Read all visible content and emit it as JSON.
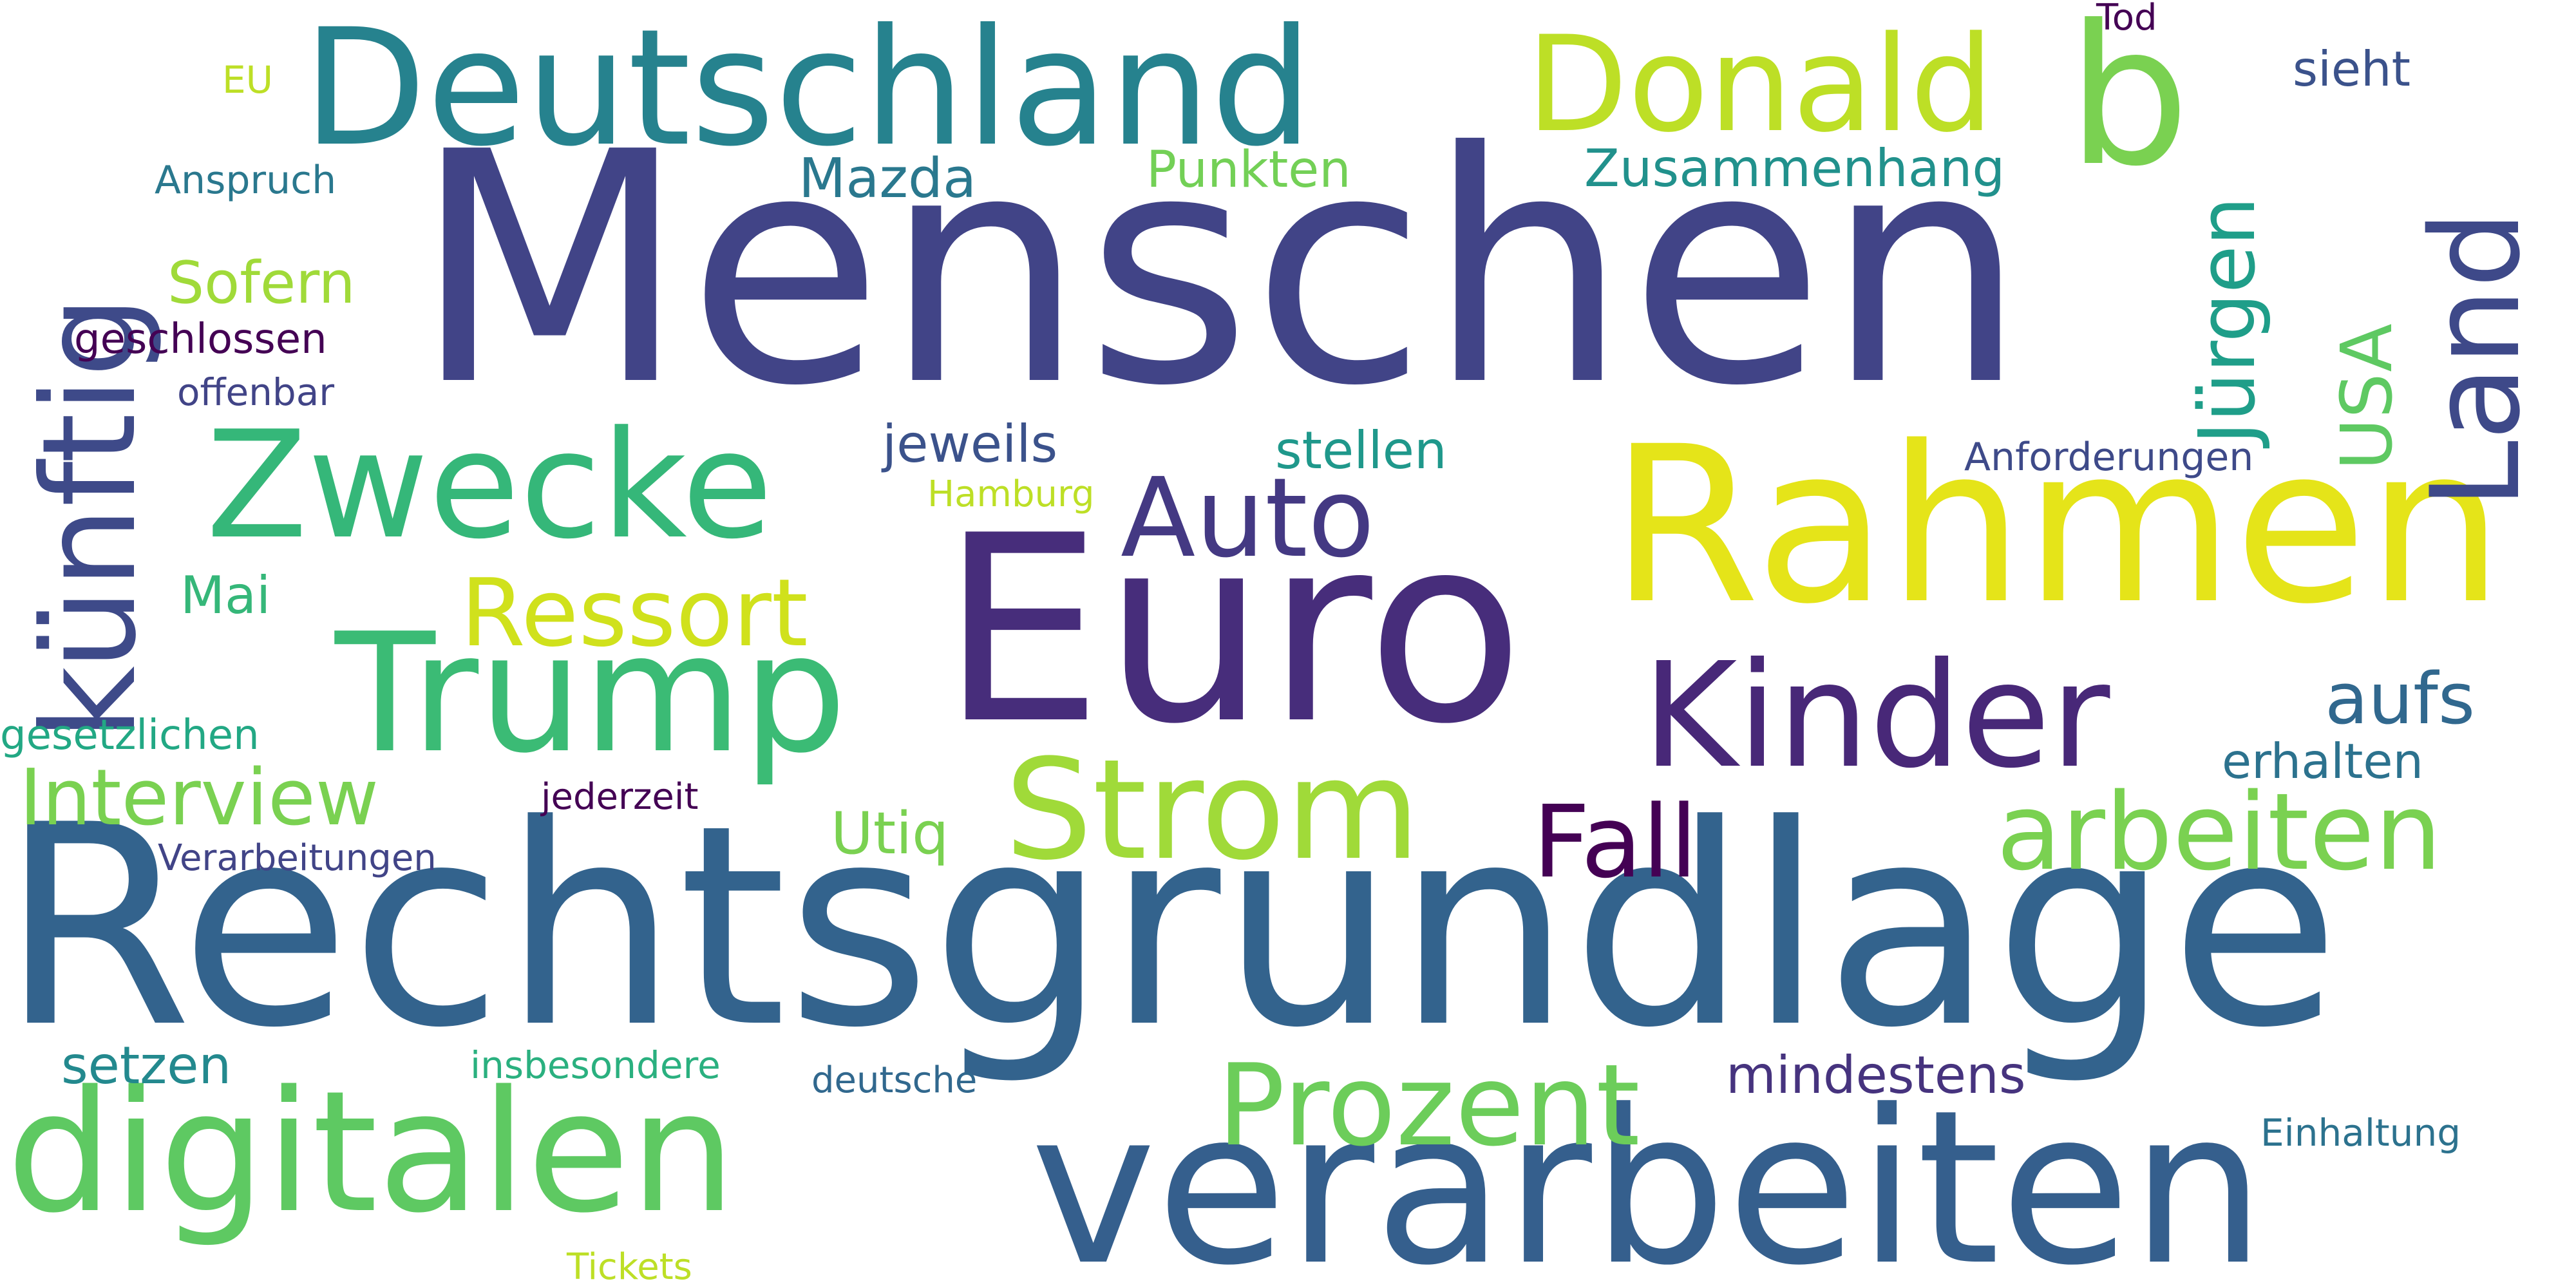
{
  "words": [
    {
      "key": "menschen",
      "text": "Menschen",
      "color": "#414487"
    },
    {
      "key": "rechtsgrundlage",
      "text": "Rechtsgrundlage",
      "color": "#33638d"
    },
    {
      "key": "rahmen",
      "text": "Rahmen",
      "color": "#e5e419"
    },
    {
      "key": "euro",
      "text": "Euro",
      "color": "#472d7b"
    },
    {
      "key": "verarbeiten",
      "text": "verarbeiten",
      "color": "#355f8d"
    },
    {
      "key": "deutschland",
      "text": "Deutschland",
      "color": "#26828e"
    },
    {
      "key": "digitalen",
      "text": "digitalen",
      "color": "#5ec962"
    },
    {
      "key": "zwecke",
      "text": "Zwecke",
      "color": "#35b779"
    },
    {
      "key": "trump",
      "text": "Trump",
      "color": "#3bbb75"
    },
    {
      "key": "kinder",
      "text": "Kinder",
      "color": "#482878"
    },
    {
      "key": "kuenftig",
      "text": "künftig",
      "color": "#3e4a89"
    },
    {
      "key": "strom",
      "text": "Strom",
      "color": "#a0da39"
    },
    {
      "key": "donald",
      "text": "Donald",
      "color": "#bddf26"
    },
    {
      "key": "b",
      "text": "b",
      "color": "#7ad151"
    },
    {
      "key": "land",
      "text": "Land",
      "color": "#3e4989"
    },
    {
      "key": "auto",
      "text": "Auto",
      "color": "#443983"
    },
    {
      "key": "prozent",
      "text": "Prozent",
      "color": "#6ccd5a"
    },
    {
      "key": "arbeiten",
      "text": "arbeiten",
      "color": "#7ad151"
    },
    {
      "key": "juergen",
      "text": "Jürgen",
      "color": "#1f9e89"
    },
    {
      "key": "ressort",
      "text": "Ressort",
      "color": "#d0e11c"
    },
    {
      "key": "fall",
      "text": "Fall",
      "color": "#440154"
    },
    {
      "key": "interview",
      "text": "Interview",
      "color": "#7ad151"
    },
    {
      "key": "usa",
      "text": "USA",
      "color": "#5ec962"
    },
    {
      "key": "aufs",
      "text": "aufs",
      "color": "#31688e"
    },
    {
      "key": "zusammenhang",
      "text": "Zusammenhang",
      "color": "#21918c"
    },
    {
      "key": "mindestens",
      "text": "mindestens",
      "color": "#46337e"
    },
    {
      "key": "mazda",
      "text": "Mazda",
      "color": "#2a788e"
    },
    {
      "key": "punkten",
      "text": "Punkten",
      "color": "#73d056"
    },
    {
      "key": "sofern",
      "text": "Sofern",
      "color": "#a0da39"
    },
    {
      "key": "stellen",
      "text": "stellen",
      "color": "#1f988b"
    },
    {
      "key": "jeweils",
      "text": "jeweils",
      "color": "#3b528b"
    },
    {
      "key": "erhalten",
      "text": "erhalten",
      "color": "#2c728e"
    },
    {
      "key": "utiq",
      "text": "Utiq",
      "color": "#7ad151"
    },
    {
      "key": "setzen",
      "text": "setzen",
      "color": "#23898e"
    },
    {
      "key": "sieht",
      "text": "sieht",
      "color": "#3b528b"
    },
    {
      "key": "geschlossen",
      "text": "geschlossen",
      "color": "#440154"
    },
    {
      "key": "mai",
      "text": "Mai",
      "color": "#35b779"
    },
    {
      "key": "gesetzlichen",
      "text": "gesetzlichen",
      "color": "#22a884"
    },
    {
      "key": "offenbar",
      "text": "offenbar",
      "color": "#414487"
    },
    {
      "key": "anforderungen",
      "text": "Anforderungen",
      "color": "#3e4a89"
    },
    {
      "key": "deutsche",
      "text": "deutsche",
      "color": "#31688e"
    },
    {
      "key": "insbesondere",
      "text": "insbesondere",
      "color": "#2ab07f"
    },
    {
      "key": "jederzeit",
      "text": "jederzeit",
      "color": "#440154"
    },
    {
      "key": "verarbeitungen",
      "text": "Verarbeitungen",
      "color": "#414487"
    },
    {
      "key": "anspruch",
      "text": "Anspruch",
      "color": "#2a788e"
    },
    {
      "key": "einhaltung",
      "text": "Einhaltung",
      "color": "#2c728e"
    },
    {
      "key": "hamburg",
      "text": "Hamburg",
      "color": "#bddf26"
    },
    {
      "key": "tickets",
      "text": "Tickets",
      "color": "#bddf26"
    },
    {
      "key": "eu",
      "text": "EU",
      "color": "#bddf26"
    },
    {
      "key": "tod",
      "text": "Tod",
      "color": "#440154"
    }
  ]
}
